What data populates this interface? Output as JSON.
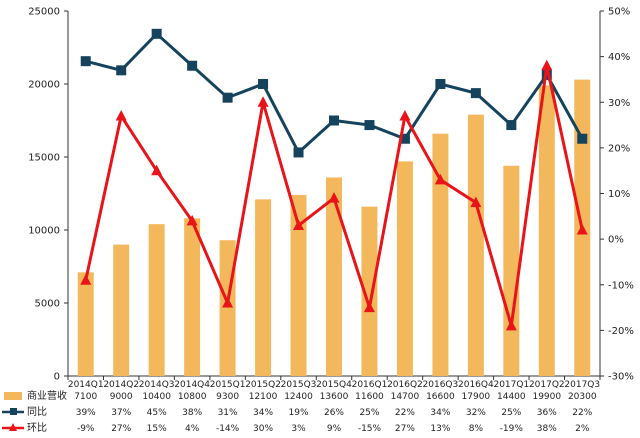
{
  "chart_data": {
    "type": "bar",
    "categories": [
      "2014Q1",
      "2014Q2",
      "2014Q3",
      "2014Q4",
      "2015Q1",
      "2015Q2",
      "2015Q3",
      "2015Q4",
      "2016Q1",
      "2016Q2",
      "2016Q3",
      "2016Q4",
      "2017Q1",
      "2017Q2",
      "2017Q3"
    ],
    "y_left": {
      "ylim": [
        0,
        25000
      ],
      "ticks": [
        "0",
        "5000",
        "10000",
        "15000",
        "20000",
        "25000"
      ],
      "tick_values": [
        0,
        5000,
        10000,
        15000,
        20000,
        25000
      ]
    },
    "y_right": {
      "ylim": [
        -30,
        50
      ],
      "ticks": [
        "-30%",
        "-20%",
        "-10%",
        "0%",
        "10%",
        "20%",
        "30%",
        "40%",
        "50%"
      ],
      "tick_values": [
        -30,
        -20,
        -10,
        0,
        10,
        20,
        30,
        40,
        50
      ]
    },
    "series": [
      {
        "name": "商业营收",
        "kind": "bar",
        "axis": "left",
        "color": "#F2B85B",
        "values": [
          7100,
          9000,
          10400,
          10800,
          9300,
          12100,
          12400,
          13600,
          11600,
          14700,
          16600,
          17900,
          14400,
          19900,
          20300
        ],
        "labels": [
          "7100",
          "9000",
          "10400",
          "10800",
          "9300",
          "12100",
          "12400",
          "13600",
          "11600",
          "14700",
          "16600",
          "17900",
          "14400",
          "19900",
          "20300"
        ]
      },
      {
        "name": "同比",
        "kind": "line",
        "marker": "square",
        "axis": "right",
        "color": "#15435E",
        "values": [
          39,
          37,
          45,
          38,
          31,
          34,
          19,
          26,
          25,
          22,
          34,
          32,
          25,
          36,
          22
        ],
        "labels": [
          "39%",
          "37%",
          "45%",
          "38%",
          "31%",
          "34%",
          "19%",
          "26%",
          "25%",
          "22%",
          "34%",
          "32%",
          "25%",
          "36%",
          "22%"
        ]
      },
      {
        "name": "环比",
        "kind": "line",
        "marker": "triangle",
        "axis": "right",
        "color": "#E8141A",
        "values": [
          -9,
          27,
          15,
          4,
          -14,
          30,
          3,
          9,
          -15,
          27,
          13,
          8,
          -19,
          38,
          2
        ],
        "labels": [
          "-9%",
          "27%",
          "15%",
          "4%",
          "-14%",
          "30%",
          "3%",
          "9%",
          "-15%",
          "27%",
          "13%",
          "8%",
          "-19%",
          "38%",
          "2%"
        ]
      }
    ],
    "grid": false,
    "legend": "bottom-left data table"
  }
}
